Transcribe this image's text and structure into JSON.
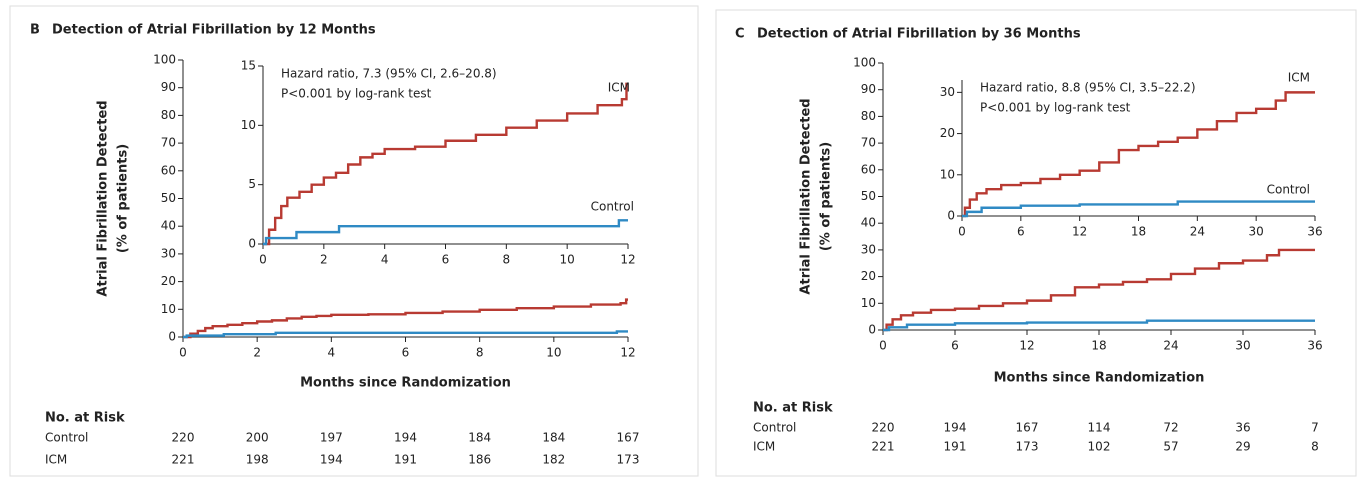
{
  "chart_data": [
    {
      "type": "step",
      "panel": "B",
      "title": "Detection of Atrial Fibrillation by 12 Months",
      "ylabel": [
        "Atrial Fibrillation Detected",
        "(% of patients)"
      ],
      "xlabel": "Months since Randomization",
      "xlim": [
        0,
        12
      ],
      "xticks": [
        0,
        2,
        4,
        6,
        8,
        10,
        12
      ],
      "ylim": [
        0,
        100
      ],
      "yticks": [
        0,
        10,
        20,
        30,
        40,
        50,
        60,
        70,
        80,
        90,
        100
      ],
      "series": [
        {
          "color": "#b83a32",
          "x": [
            0,
            0.2,
            0.4,
            0.6,
            0.8,
            1.2,
            1.6,
            2,
            2.4,
            2.8,
            3.2,
            3.6,
            4,
            5,
            6,
            7,
            8,
            9,
            10,
            11,
            11.8,
            11.95
          ],
          "values": [
            0,
            1.2,
            2.2,
            3.2,
            3.9,
            4.4,
            5,
            5.6,
            6,
            6.7,
            7.3,
            7.6,
            8,
            8.2,
            8.7,
            9.2,
            9.8,
            10.4,
            11,
            11.7,
            12.2,
            13.5
          ]
        },
        {
          "color": "#2f8ac4",
          "x": [
            0,
            0.1,
            1.1,
            2.5,
            11.7
          ],
          "values": [
            0,
            0.5,
            1,
            1.5,
            2
          ]
        }
      ],
      "risk_table": {
        "title": "No. at Risk",
        "rows": [
          {
            "name": "Control",
            "values": [
              220,
              200,
              197,
              194,
              184,
              184,
              167
            ]
          },
          {
            "name": "ICM",
            "values": [
              221,
              198,
              194,
              191,
              186,
              182,
              173
            ]
          }
        ]
      }
    },
    {
      "type": "step",
      "xlim": [
        0,
        12
      ],
      "xticks": [
        0,
        2,
        4,
        6,
        8,
        10,
        12
      ],
      "ylim": [
        0,
        15
      ],
      "yticks": [
        0,
        5,
        10,
        15
      ],
      "annotations": [
        "Hazard ratio, 7.3 (95% CI, 2.6–20.8)",
        "P<0.001 by log-rank test"
      ],
      "series": [
        {
          "name": "ICM",
          "color": "#b83a32",
          "x": [
            0,
            0.2,
            0.4,
            0.6,
            0.8,
            1.2,
            1.6,
            2,
            2.4,
            2.8,
            3.2,
            3.6,
            4,
            5,
            6,
            7,
            8,
            9,
            10,
            11,
            11.8,
            11.95
          ],
          "values": [
            0,
            1.2,
            2.2,
            3.2,
            3.9,
            4.4,
            5,
            5.6,
            6,
            6.7,
            7.3,
            7.6,
            8,
            8.2,
            8.7,
            9.2,
            9.8,
            10.4,
            11,
            11.7,
            12.2,
            13.5
          ]
        },
        {
          "name": "Control",
          "color": "#2f8ac4",
          "x": [
            0,
            0.1,
            1.1,
            2.5,
            11.7
          ],
          "values": [
            0,
            0.5,
            1,
            1.5,
            2
          ]
        }
      ]
    },
    {
      "type": "step",
      "panel": "C",
      "title": "Detection of Atrial Fibrillation by 36 Months",
      "ylabel": [
        "Atrial Fibrillation Detected",
        "(% of patients)"
      ],
      "xlabel": "Months since Randomization",
      "xlim": [
        0,
        36
      ],
      "xticks": [
        0,
        6,
        12,
        18,
        24,
        30,
        36
      ],
      "ylim": [
        0,
        100
      ],
      "yticks": [
        0,
        10,
        20,
        30,
        40,
        50,
        60,
        70,
        80,
        90,
        100
      ],
      "series": [
        {
          "color": "#b83a32",
          "x": [
            0,
            0.3,
            0.8,
            1.5,
            2.5,
            4,
            6,
            8,
            10,
            12,
            14,
            16,
            18,
            20,
            22,
            24,
            26,
            28,
            30,
            32,
            33
          ],
          "values": [
            0,
            2,
            4,
            5.5,
            6.5,
            7.5,
            8,
            9,
            10,
            11,
            13,
            16,
            17,
            18,
            19,
            21,
            23,
            25,
            26,
            28,
            30
          ]
        },
        {
          "color": "#2f8ac4",
          "x": [
            0,
            0.5,
            2,
            6,
            12,
            22
          ],
          "values": [
            0,
            1,
            2,
            2.5,
            2.8,
            3.5
          ]
        }
      ],
      "risk_table": {
        "title": "No. at Risk",
        "rows": [
          {
            "name": "Control",
            "values": [
              220,
              194,
              167,
              114,
              72,
              36,
              7
            ]
          },
          {
            "name": "ICM",
            "values": [
              221,
              191,
              173,
              102,
              57,
              29,
              8
            ]
          }
        ]
      }
    },
    {
      "type": "step",
      "xlim": [
        0,
        36
      ],
      "xticks": [
        0,
        6,
        12,
        18,
        24,
        30,
        36
      ],
      "ylim": [
        0,
        33
      ],
      "yticks": [
        0,
        10,
        20,
        30
      ],
      "annotations": [
        "Hazard ratio, 8.8 (95% CI, 3.5–22.2)",
        "P<0.001 by log-rank test"
      ],
      "series": [
        {
          "name": "ICM",
          "color": "#b83a32",
          "x": [
            0,
            0.3,
            0.8,
            1.5,
            2.5,
            4,
            6,
            8,
            10,
            12,
            14,
            16,
            18,
            20,
            22,
            24,
            26,
            28,
            30,
            32,
            33
          ],
          "values": [
            0,
            2,
            4,
            5.5,
            6.5,
            7.5,
            8,
            9,
            10,
            11,
            13,
            16,
            17,
            18,
            19,
            21,
            23,
            25,
            26,
            28,
            30
          ]
        },
        {
          "name": "Control",
          "color": "#2f8ac4",
          "x": [
            0,
            0.5,
            2,
            6,
            12,
            22
          ],
          "values": [
            0,
            1,
            2,
            2.5,
            2.8,
            3.5
          ]
        }
      ]
    }
  ]
}
